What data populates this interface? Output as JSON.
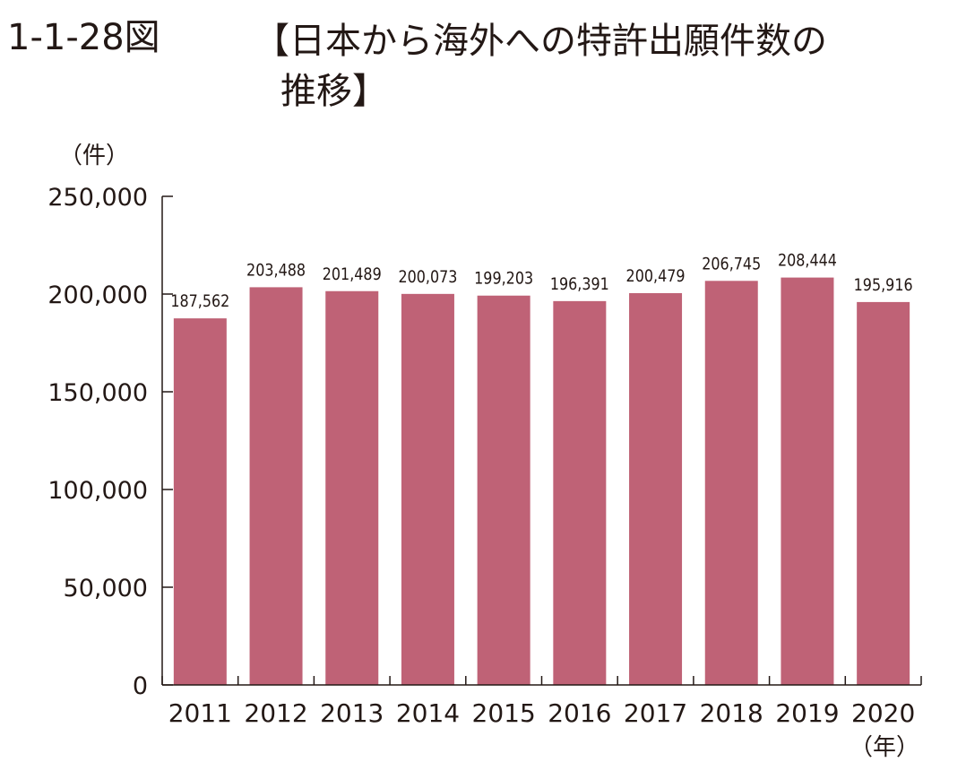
{
  "figure_number": "1-1-28図",
  "title_line1": "【日本から海外への特許出願件数の",
  "title_line2": "推移】",
  "colors": {
    "bar": "#bf6276",
    "axis": "#231815",
    "text": "#231815"
  },
  "chart_data": {
    "type": "bar",
    "categories": [
      "2011",
      "2012",
      "2013",
      "2014",
      "2015",
      "2016",
      "2017",
      "2018",
      "2019",
      "2020"
    ],
    "values": [
      187562,
      203488,
      201489,
      200073,
      199203,
      196391,
      200479,
      206745,
      208444,
      195916
    ],
    "data_labels": [
      "187,562",
      "203,488",
      "201,489",
      "200,073",
      "199,203",
      "196,391",
      "200,479",
      "206,745",
      "208,444",
      "195,916"
    ],
    "ylim": [
      0,
      250000
    ],
    "yticks": [
      0,
      50000,
      100000,
      150000,
      200000,
      250000
    ],
    "ytick_labels": [
      "0",
      "50,000",
      "100,000",
      "150,000",
      "200,000",
      "250,000"
    ],
    "y_unit": "（件）",
    "x_unit": "（年）",
    "grid": false,
    "legend": "none"
  }
}
